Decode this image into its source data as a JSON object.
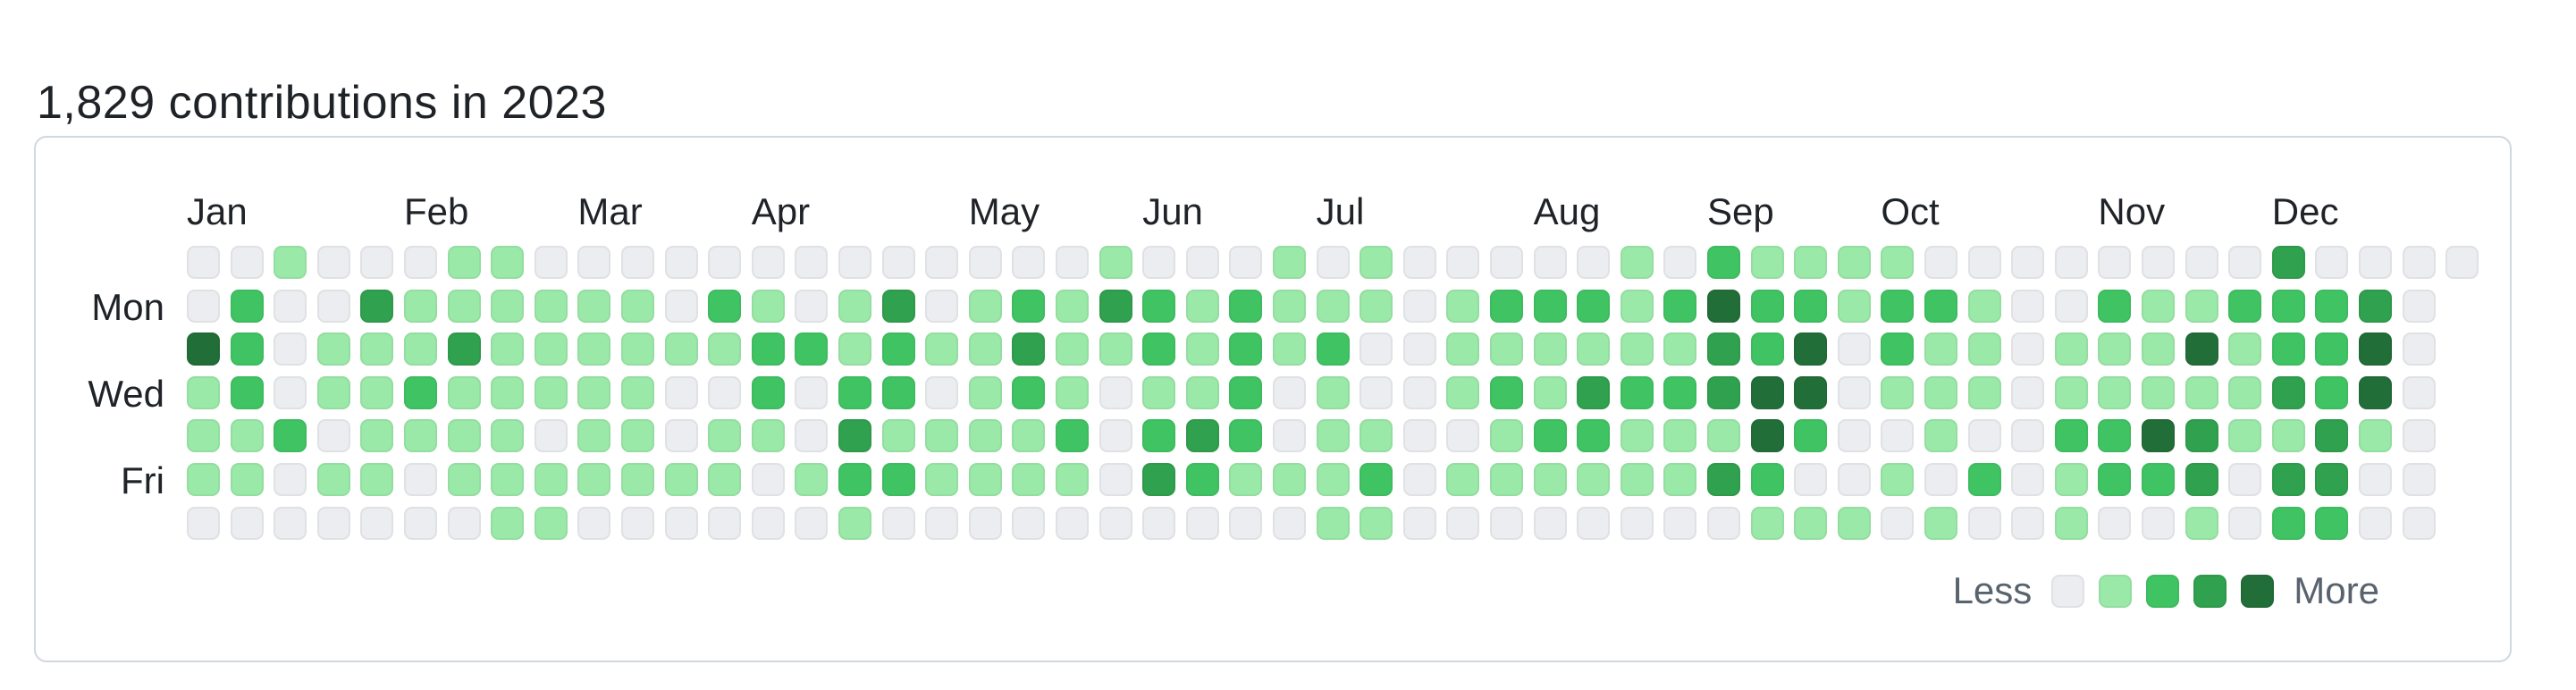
{
  "header": {
    "title": "1,829 contributions in 2023"
  },
  "legend": {
    "less_label": "Less",
    "more_label": "More"
  },
  "chart_data": {
    "type": "heatmap",
    "title": "1,829 contributions in 2023",
    "total_contributions": 1829,
    "year": 2023,
    "layout": {
      "weeks_count": 53,
      "days_per_week": 7,
      "first_row_is": "Sunday",
      "grid_on": false,
      "legend_position": "bottom-right"
    },
    "palette": [
      "#ebedf0",
      "#9be9a8",
      "#40c463",
      "#30a14e",
      "#216e39"
    ],
    "level_range": [
      0,
      4
    ],
    "month_labels": [
      {
        "label": "Jan",
        "week": 0
      },
      {
        "label": "Feb",
        "week": 5
      },
      {
        "label": "Mar",
        "week": 9
      },
      {
        "label": "Apr",
        "week": 13
      },
      {
        "label": "May",
        "week": 18
      },
      {
        "label": "Jun",
        "week": 22
      },
      {
        "label": "Jul",
        "week": 26
      },
      {
        "label": "Aug",
        "week": 31
      },
      {
        "label": "Sep",
        "week": 35
      },
      {
        "label": "Oct",
        "week": 39
      },
      {
        "label": "Nov",
        "week": 44
      },
      {
        "label": "Dec",
        "week": 48
      }
    ],
    "visible_row_labels": [
      {
        "label": "Mon",
        "row": 1
      },
      {
        "label": "Wed",
        "row": 3
      },
      {
        "label": "Fri",
        "row": 5
      }
    ],
    "weeks": [
      [
        0,
        0,
        4,
        1,
        1,
        1,
        0
      ],
      [
        0,
        2,
        2,
        2,
        1,
        1,
        0
      ],
      [
        1,
        0,
        0,
        0,
        2,
        0,
        0
      ],
      [
        0,
        0,
        1,
        1,
        0,
        1,
        0
      ],
      [
        0,
        3,
        1,
        1,
        1,
        1,
        0
      ],
      [
        0,
        1,
        1,
        2,
        1,
        0,
        0
      ],
      [
        1,
        1,
        3,
        1,
        1,
        1,
        0
      ],
      [
        1,
        1,
        1,
        1,
        1,
        1,
        1
      ],
      [
        0,
        1,
        1,
        1,
        0,
        1,
        1
      ],
      [
        0,
        1,
        1,
        1,
        1,
        1,
        0
      ],
      [
        0,
        1,
        1,
        1,
        1,
        1,
        0
      ],
      [
        0,
        0,
        1,
        0,
        0,
        1,
        0
      ],
      [
        0,
        2,
        1,
        0,
        1,
        1,
        0
      ],
      [
        0,
        1,
        2,
        2,
        1,
        0,
        0
      ],
      [
        0,
        0,
        2,
        0,
        0,
        1,
        0
      ],
      [
        0,
        1,
        1,
        2,
        3,
        2,
        1
      ],
      [
        0,
        3,
        2,
        2,
        1,
        2,
        0
      ],
      [
        0,
        0,
        1,
        0,
        1,
        1,
        0
      ],
      [
        0,
        1,
        1,
        1,
        1,
        1,
        0
      ],
      [
        0,
        2,
        3,
        2,
        1,
        1,
        0
      ],
      [
        0,
        1,
        1,
        1,
        2,
        1,
        0
      ],
      [
        1,
        3,
        1,
        0,
        0,
        0,
        0
      ],
      [
        0,
        2,
        2,
        1,
        2,
        3,
        0
      ],
      [
        0,
        1,
        1,
        1,
        3,
        2,
        0
      ],
      [
        0,
        2,
        2,
        2,
        2,
        1,
        0
      ],
      [
        1,
        1,
        1,
        0,
        0,
        1,
        0
      ],
      [
        0,
        1,
        2,
        1,
        1,
        1,
        1
      ],
      [
        1,
        1,
        0,
        0,
        1,
        2,
        1
      ],
      [
        0,
        0,
        0,
        0,
        0,
        0,
        0
      ],
      [
        0,
        1,
        1,
        1,
        0,
        1,
        0
      ],
      [
        0,
        2,
        1,
        2,
        1,
        1,
        0
      ],
      [
        0,
        2,
        1,
        1,
        2,
        1,
        0
      ],
      [
        0,
        2,
        1,
        3,
        2,
        1,
        0
      ],
      [
        1,
        1,
        1,
        2,
        1,
        1,
        0
      ],
      [
        0,
        2,
        1,
        2,
        1,
        1,
        0
      ],
      [
        2,
        4,
        3,
        3,
        1,
        3,
        0
      ],
      [
        1,
        2,
        2,
        4,
        4,
        2,
        1
      ],
      [
        1,
        2,
        4,
        4,
        2,
        0,
        1
      ],
      [
        1,
        1,
        0,
        0,
        0,
        0,
        1
      ],
      [
        1,
        2,
        2,
        1,
        0,
        1,
        0
      ],
      [
        0,
        2,
        1,
        1,
        1,
        0,
        1
      ],
      [
        0,
        1,
        1,
        1,
        0,
        2,
        0
      ],
      [
        0,
        0,
        0,
        0,
        0,
        0,
        0
      ],
      [
        0,
        0,
        1,
        1,
        2,
        1,
        1
      ],
      [
        0,
        2,
        1,
        1,
        2,
        2,
        0
      ],
      [
        0,
        1,
        1,
        1,
        4,
        2,
        0
      ],
      [
        0,
        1,
        4,
        1,
        3,
        3,
        1
      ],
      [
        0,
        2,
        1,
        1,
        1,
        0,
        0
      ],
      [
        3,
        2,
        2,
        3,
        1,
        3,
        2
      ],
      [
        0,
        2,
        2,
        2,
        3,
        3,
        2
      ],
      [
        0,
        3,
        4,
        4,
        1,
        0,
        0
      ],
      [
        0,
        0,
        0,
        0,
        0,
        0,
        0
      ],
      [
        0
      ]
    ]
  },
  "colors": {
    "card_border": "#d0d7de",
    "title_text": "#1f2328",
    "label_text": "#1f2328",
    "legend_text": "#59636e",
    "cell_outline": "rgba(27,31,35,0.06)"
  }
}
